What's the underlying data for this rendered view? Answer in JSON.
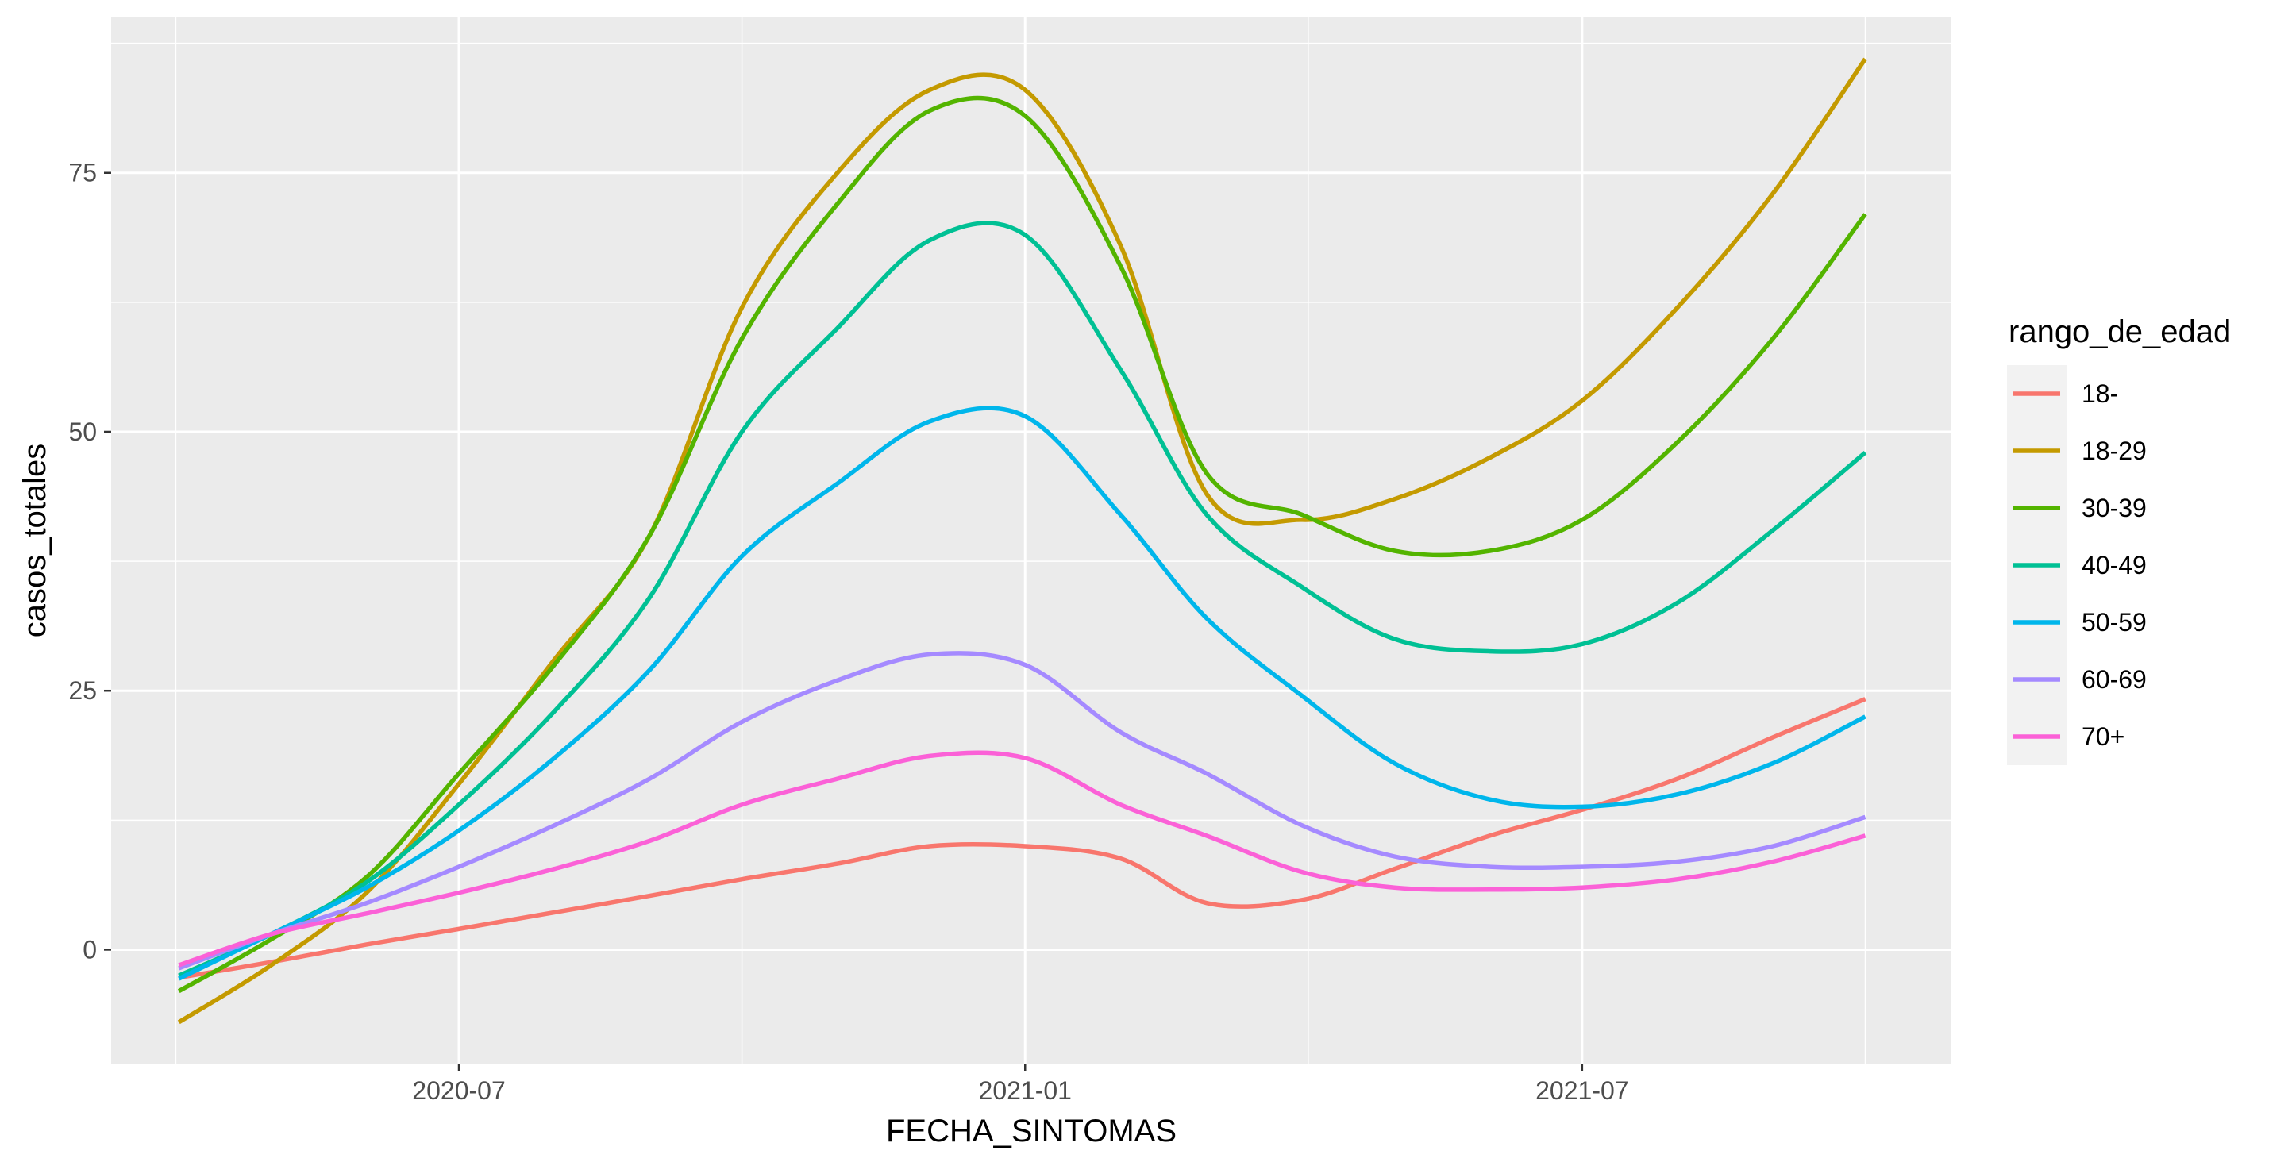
{
  "chart_data": {
    "type": "line",
    "title": "",
    "xlabel": "FECHA_SINTOMAS",
    "ylabel": "casos_totales",
    "x_ticks": [
      "2020-07",
      "2021-01",
      "2021-07"
    ],
    "y_ticks": [
      "0",
      "25",
      "50",
      "75"
    ],
    "xlim": [
      "2020-03-10",
      "2021-10-29"
    ],
    "ylim": [
      -11,
      90
    ],
    "grid": true,
    "legend_position": "right",
    "legend_title": "rango_de_edad",
    "x": [
      "2020-04-01",
      "2020-05-01",
      "2020-06-01",
      "2020-07-01",
      "2020-08-01",
      "2020-09-01",
      "2020-10-01",
      "2020-11-01",
      "2020-12-01",
      "2021-01-01",
      "2021-02-01",
      "2021-03-01",
      "2021-04-01",
      "2021-05-01",
      "2021-06-01",
      "2021-07-01",
      "2021-08-01",
      "2021-09-01",
      "2021-10-01"
    ],
    "series": [
      {
        "name": "18-",
        "color": "#F8766D",
        "values": [
          -2.7,
          -1.2,
          0.5,
          2,
          3.6,
          5.2,
          6.8,
          8.3,
          10,
          10,
          8.8,
          4.5,
          4.8,
          7.8,
          11,
          13.5,
          16.5,
          20.5,
          24.2
        ]
      },
      {
        "name": "18-29",
        "color": "#C49A00",
        "values": [
          -7,
          -1.5,
          5.5,
          16,
          28,
          40,
          62,
          75,
          83,
          83,
          68,
          44,
          41.5,
          43.5,
          47.5,
          53,
          62,
          73,
          86
        ]
      },
      {
        "name": "30-39",
        "color": "#53B400",
        "values": [
          -4,
          1,
          7,
          17,
          27.5,
          40,
          59,
          72,
          81,
          80.5,
          66,
          46,
          42,
          38.5,
          38.5,
          41.5,
          49,
          59,
          71
        ]
      },
      {
        "name": "40-49",
        "color": "#00C094",
        "values": [
          -2.5,
          1.5,
          6.5,
          14,
          23,
          34,
          50,
          60,
          68.5,
          69,
          56,
          42,
          35,
          30,
          28.8,
          29.5,
          33.5,
          40.5,
          48
        ]
      },
      {
        "name": "50-59",
        "color": "#00B6EB",
        "values": [
          -2.8,
          1.5,
          6,
          11.5,
          18.5,
          27,
          38,
          45,
          51,
          51.5,
          42,
          32,
          24.5,
          18,
          14.5,
          13.8,
          15,
          18,
          22.5
        ]
      },
      {
        "name": "60-69",
        "color": "#A58AFF",
        "values": [
          -1.8,
          1.5,
          4.5,
          8,
          12,
          16.5,
          22,
          26,
          28.5,
          27.5,
          21,
          17,
          12,
          9,
          8,
          8,
          8.5,
          10,
          12.8
        ]
      },
      {
        "name": "70+",
        "color": "#FB61D7",
        "values": [
          -1.5,
          1.5,
          3.5,
          5.5,
          7.8,
          10.5,
          14,
          16.5,
          18.7,
          18.5,
          14,
          11,
          7.5,
          6,
          5.8,
          6,
          6.8,
          8.5,
          11
        ]
      }
    ]
  }
}
